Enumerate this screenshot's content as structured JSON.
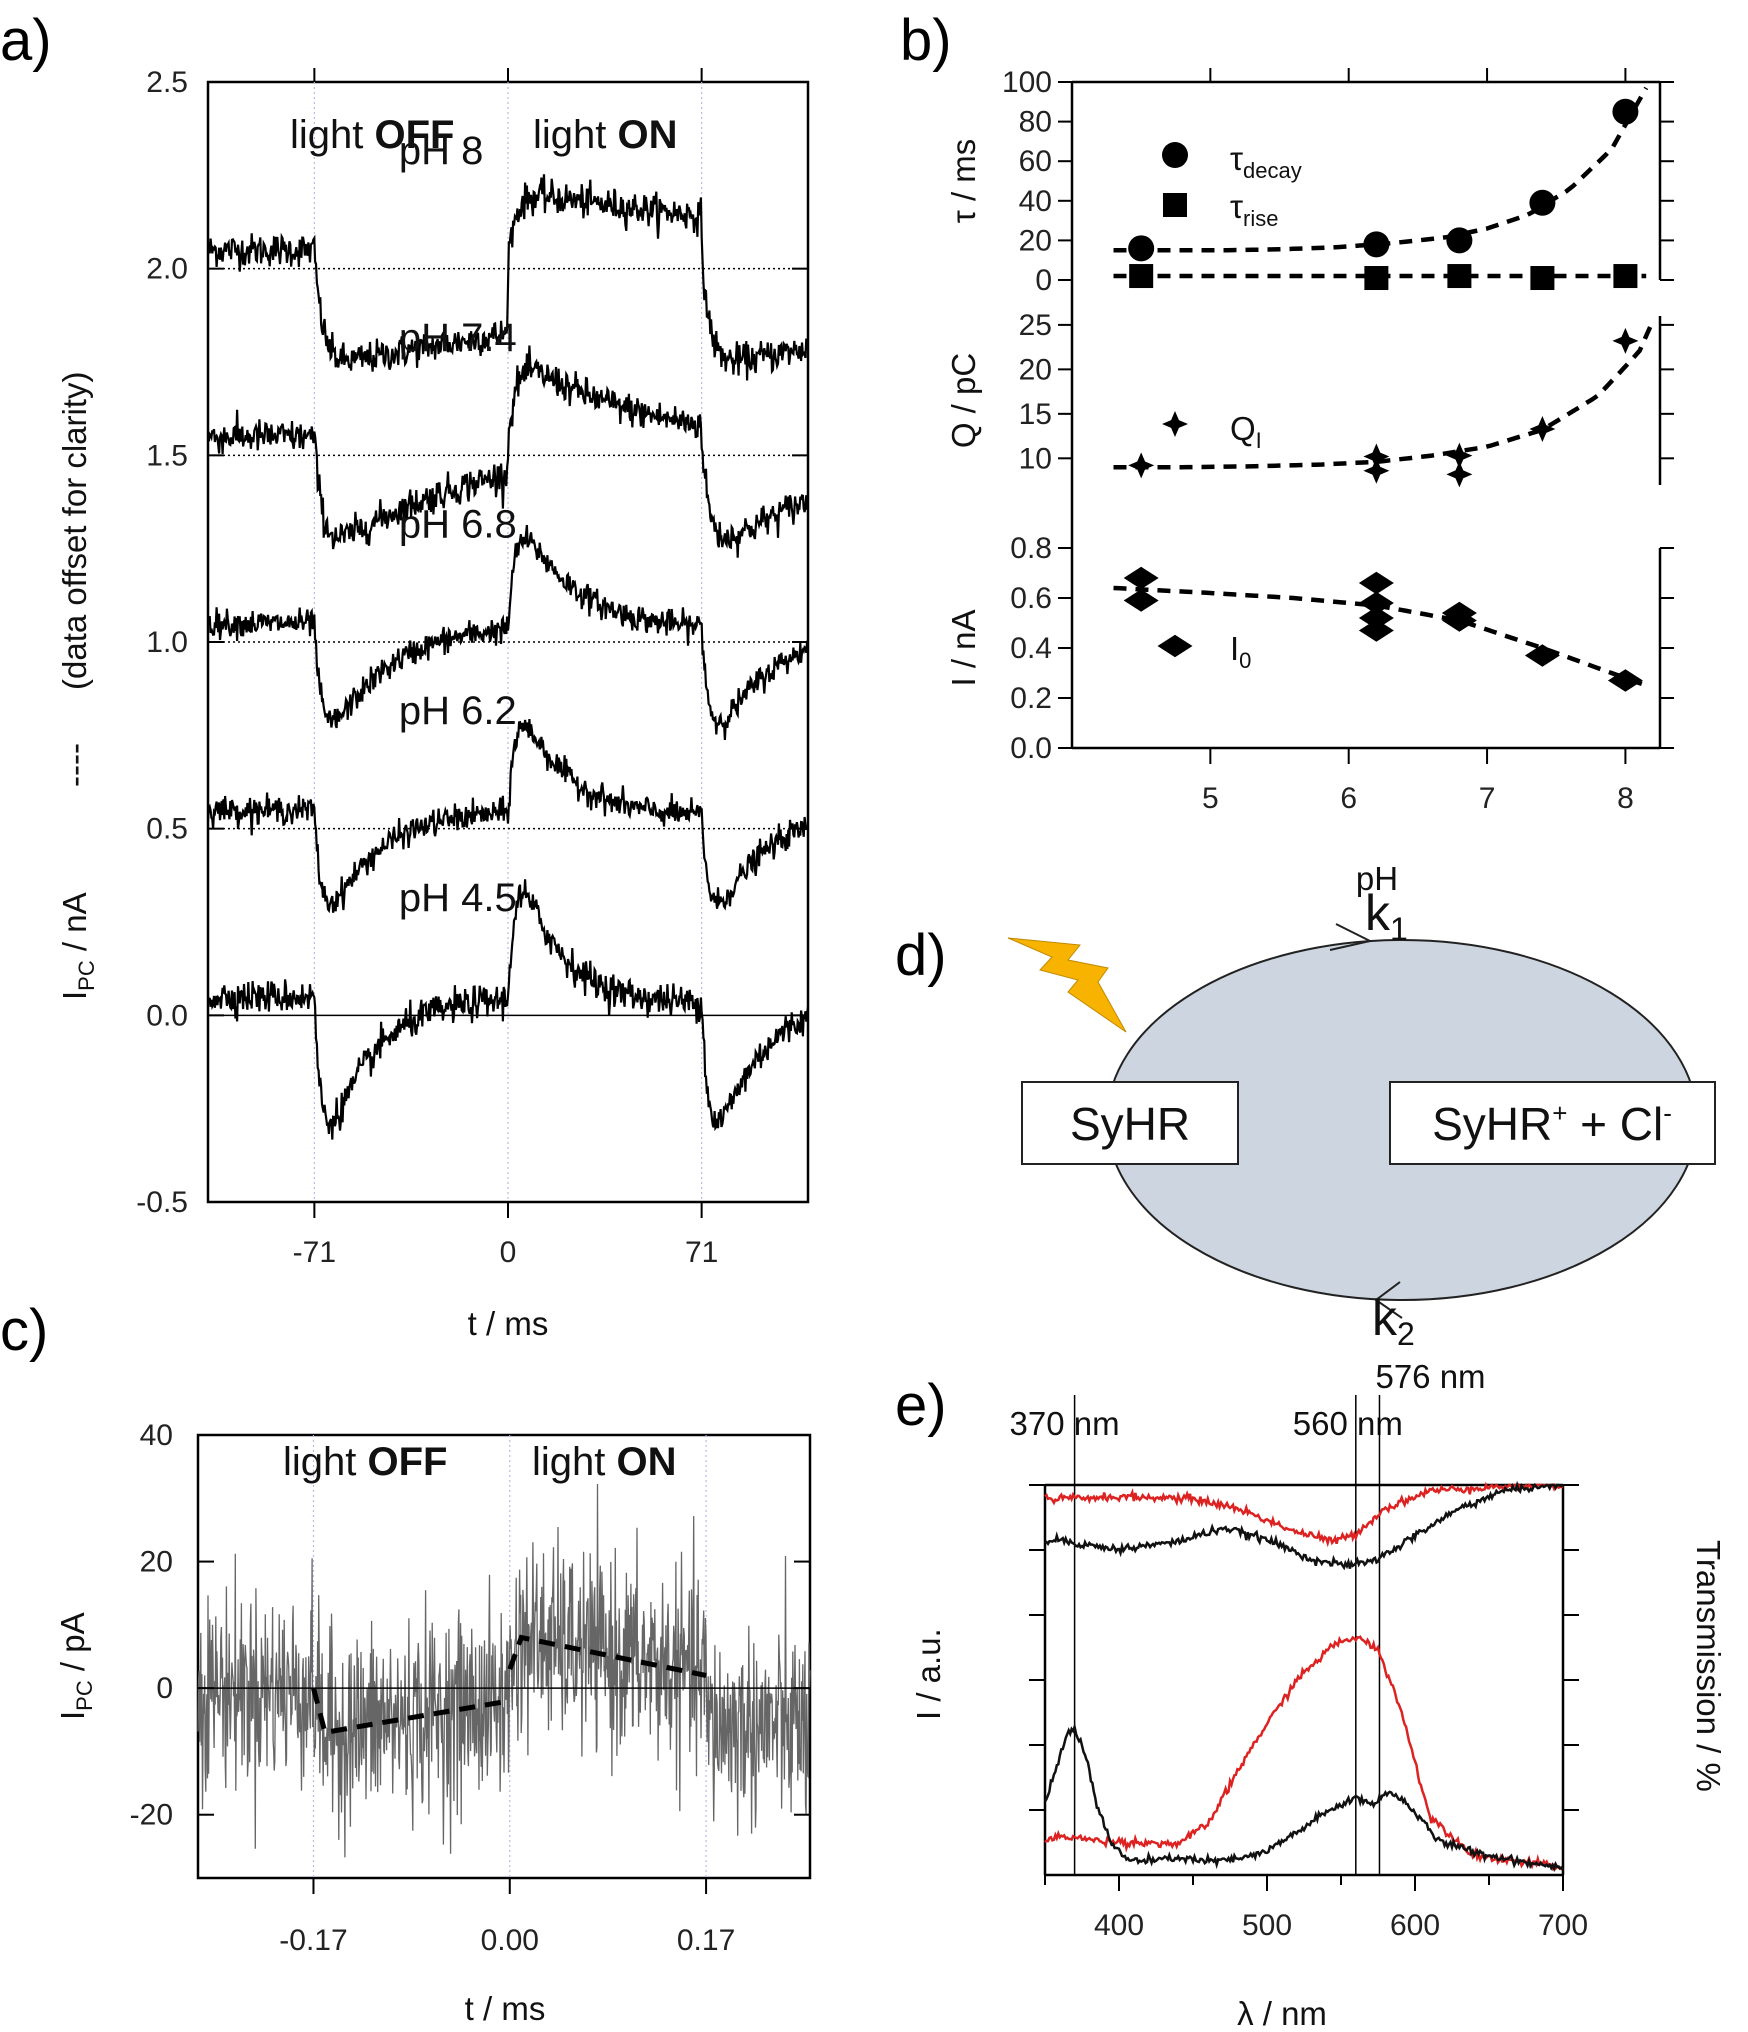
{
  "figure": {
    "panel_labels": [
      "a)",
      "b)",
      "c)",
      "d)",
      "e)"
    ]
  },
  "chart_data": [
    {
      "panel": "a",
      "type": "line",
      "xlabel": "t / ms",
      "ylabel_main": "I",
      "ylabel_sub": "PC",
      "ylabel_unit": " / nA",
      "ylabel_dash": "----",
      "ylabel_note": "(data offset for clarity)",
      "xlim": [
        -110,
        110
      ],
      "ylim": [
        -0.5,
        2.5
      ],
      "xticks": [
        -71,
        0,
        71
      ],
      "xtick_labels": [
        "-71",
        "0",
        "71"
      ],
      "yticks": [
        -0.5,
        0.0,
        0.5,
        1.0,
        1.5,
        2.0,
        2.5
      ],
      "ytick_labels": [
        "-0.5",
        "0.0",
        "0.5",
        "1.0",
        "1.5",
        "2.0",
        "2.5"
      ],
      "annotations": {
        "off_prefix": "light ",
        "off_bold": "OFF",
        "on_prefix": "light ",
        "on_bold": "ON"
      },
      "series": [
        {
          "name": "pH 8",
          "offset": 2.0,
          "off_amp": 0.32,
          "off_tau": 200,
          "on_amp": 0.18,
          "on_tau": 150,
          "noise": 0.022
        },
        {
          "name": "pH 7.4",
          "offset": 1.5,
          "off_amp": 0.33,
          "off_tau": 60,
          "on_amp": 0.25,
          "on_tau": 45,
          "noise": 0.022
        },
        {
          "name": "pH 6.8",
          "offset": 1.0,
          "off_amp": 0.4,
          "off_tau": 22,
          "on_amp": 0.38,
          "on_tau": 20,
          "noise": 0.018
        },
        {
          "name": "pH 6.2",
          "offset": 0.5,
          "off_amp": 0.4,
          "off_tau": 18,
          "on_amp": 0.4,
          "on_tau": 17,
          "noise": 0.018
        },
        {
          "name": "pH 4.5",
          "offset": 0.0,
          "off_amp": 0.55,
          "off_tau": 17,
          "on_amp": 0.5,
          "on_tau": 15,
          "noise": 0.022
        }
      ]
    },
    {
      "panel": "b",
      "type": "scatter",
      "xlabel": "pH",
      "xlim": [
        4.0,
        8.25
      ],
      "xticks": [
        5,
        6,
        7,
        8
      ],
      "xtick_labels": [
        "5",
        "6",
        "7",
        "8"
      ],
      "subplots": [
        {
          "ylabel": "τ / ms",
          "ylim": [
            0,
            100
          ],
          "yticks": [
            0,
            20,
            40,
            60,
            80,
            100
          ],
          "ytick_labels": [
            "0",
            "20",
            "40",
            "60",
            "80",
            "100"
          ],
          "series": [
            {
              "name": "τ",
              "sub": "decay",
              "marker": "circle",
              "x": [
                4.5,
                6.2,
                6.8,
                7.4,
                8.0
              ],
              "y": [
                16,
                18,
                20,
                39,
                85
              ],
              "fit_x": [
                4.3,
                4.7,
                5.1,
                5.5,
                5.9,
                6.3,
                6.7,
                7.0,
                7.3,
                7.6,
                7.9,
                8.15
              ],
              "fit_y": [
                15,
                15,
                15,
                15.5,
                16.5,
                18.5,
                21.5,
                26,
                33,
                46,
                66,
                97
              ]
            },
            {
              "name": "τ",
              "sub": "rise",
              "marker": "square",
              "x": [
                4.5,
                6.2,
                6.8,
                7.4,
                8.0
              ],
              "y": [
                2,
                1,
                2,
                1,
                2
              ],
              "fit_x": [
                4.3,
                8.15
              ],
              "fit_y": [
                2,
                2
              ]
            }
          ]
        },
        {
          "ylabel": "Q / pC",
          "ylim": [
            7,
            26
          ],
          "yticks": [
            10,
            15,
            20,
            25
          ],
          "ytick_labels": [
            "10",
            "15",
            "20",
            "25"
          ],
          "series": [
            {
              "name": "Q",
              "sub": "I",
              "marker": "star4",
              "x": [
                4.5,
                6.2,
                6.2,
                6.8,
                6.8,
                7.4,
                8.0
              ],
              "y": [
                9.2,
                10.2,
                8.6,
                10.3,
                8.2,
                13.3,
                23.2
              ],
              "fit_x": [
                4.3,
                4.8,
                5.3,
                5.8,
                6.2,
                6.6,
                7.0,
                7.4,
                7.8,
                8.1,
                8.2
              ],
              "fit_y": [
                9.0,
                9.0,
                9.1,
                9.3,
                9.6,
                10.3,
                11.3,
                13.2,
                17.0,
                22.0,
                25.5
              ]
            }
          ]
        },
        {
          "ylabel": "I / nA",
          "ylim": [
            0.0,
            0.8
          ],
          "yticks": [
            0.0,
            0.2,
            0.4,
            0.6,
            0.8
          ],
          "ytick_labels": [
            "0.0",
            "0.2",
            "0.4",
            "0.6",
            "0.8"
          ],
          "series": [
            {
              "name": "I",
              "sub": "0",
              "marker": "diamond",
              "x": [
                4.5,
                4.5,
                6.2,
                6.2,
                6.2,
                6.2,
                6.8,
                6.8,
                7.4,
                8.0
              ],
              "y": [
                0.68,
                0.59,
                0.66,
                0.58,
                0.52,
                0.47,
                0.54,
                0.51,
                0.37,
                0.27
              ],
              "fit_x": [
                4.3,
                5.0,
                5.6,
                6.2,
                6.8,
                7.4,
                8.15
              ],
              "fit_y": [
                0.64,
                0.62,
                0.6,
                0.57,
                0.51,
                0.4,
                0.25
              ]
            }
          ]
        }
      ]
    },
    {
      "panel": "c",
      "type": "line",
      "xlabel": "t / ms",
      "ylabel_main": "I",
      "ylabel_sub": "PC",
      "ylabel_unit": " / pA",
      "xlim": [
        -0.27,
        0.26
      ],
      "ylim": [
        -30,
        40
      ],
      "xticks": [
        -0.17,
        0.0,
        0.17
      ],
      "xtick_labels": [
        "-0.17",
        "0.00",
        "0.17"
      ],
      "yticks": [
        -20,
        0,
        20,
        40
      ],
      "ytick_labels": [
        "-20",
        "0",
        "20",
        "40"
      ],
      "annotations": {
        "off_prefix": "light ",
        "off_bold": "OFF",
        "on_prefix": "light ",
        "on_bold": "ON"
      },
      "fit_segments": [
        {
          "x": [
            -0.17,
            -0.16,
            0.0
          ],
          "y": [
            0,
            -7,
            -2
          ]
        },
        {
          "x": [
            0.0,
            0.01,
            0.17
          ],
          "y": [
            3,
            8,
            2
          ]
        }
      ],
      "noise_sd": 7.5
    },
    {
      "panel": "e",
      "type": "line",
      "xlabel": "λ / nm",
      "ylabel_left": "I / a.u.",
      "ylabel_right": "Transmission / %",
      "xlim": [
        350,
        700
      ],
      "xticks": [
        400,
        500,
        600,
        700
      ],
      "xtick_labels": [
        "400",
        "500",
        "600",
        "700"
      ],
      "vlines": [
        370,
        560,
        576
      ],
      "vline_labels": [
        "370 nm",
        "560 nm",
        "576 nm"
      ],
      "series": [
        {
          "name": "transmission-red",
          "color": "#dd2222",
          "x": [
            350,
            355,
            360,
            400,
            450,
            480,
            520,
            545,
            560,
            580,
            610,
            650,
            690,
            700
          ],
          "y": [
            0.97,
            0.955,
            0.965,
            0.97,
            0.965,
            0.94,
            0.88,
            0.855,
            0.875,
            0.94,
            0.985,
            0.995,
            1.0,
            1.0
          ]
        },
        {
          "name": "transmission-black",
          "color": "#111111",
          "x": [
            350,
            360,
            380,
            400,
            440,
            470,
            500,
            530,
            550,
            560,
            575,
            600,
            630,
            660,
            690,
            700
          ],
          "y": [
            0.855,
            0.86,
            0.845,
            0.835,
            0.855,
            0.89,
            0.86,
            0.81,
            0.795,
            0.795,
            0.81,
            0.87,
            0.94,
            0.985,
            1.0,
            1.0
          ]
        },
        {
          "name": "emission-red",
          "color": "#dd2222",
          "x": [
            350,
            365,
            380,
            400,
            440,
            460,
            490,
            520,
            545,
            560,
            575,
            590,
            610,
            640,
            700
          ],
          "y": [
            0.09,
            0.1,
            0.09,
            0.085,
            0.08,
            0.13,
            0.33,
            0.5,
            0.59,
            0.61,
            0.58,
            0.43,
            0.15,
            0.05,
            0.02
          ]
        },
        {
          "name": "emission-black",
          "color": "#111111",
          "x": [
            350,
            358,
            365,
            370,
            378,
            385,
            395,
            405,
            420,
            440,
            460,
            480,
            500,
            520,
            540,
            560,
            570,
            580,
            590,
            600,
            615,
            630,
            650,
            680,
            700
          ],
          "y": [
            0.18,
            0.28,
            0.36,
            0.38,
            0.3,
            0.18,
            0.08,
            0.04,
            0.035,
            0.045,
            0.035,
            0.04,
            0.06,
            0.11,
            0.16,
            0.2,
            0.18,
            0.21,
            0.2,
            0.16,
            0.09,
            0.07,
            0.05,
            0.03,
            0.02
          ]
        }
      ]
    }
  ],
  "diagram_d": {
    "left_box": "SyHR",
    "right_box_pre": "SyHR",
    "right_box_sup1": "+",
    "right_box_mid": " + Cl",
    "right_box_sup2": "-",
    "k1_main": "k",
    "k1_sub": "1",
    "k2_main": "k",
    "k2_sub": "2",
    "ellipse_color": "#cdd6e0",
    "bolt_color": "#f7b300"
  }
}
